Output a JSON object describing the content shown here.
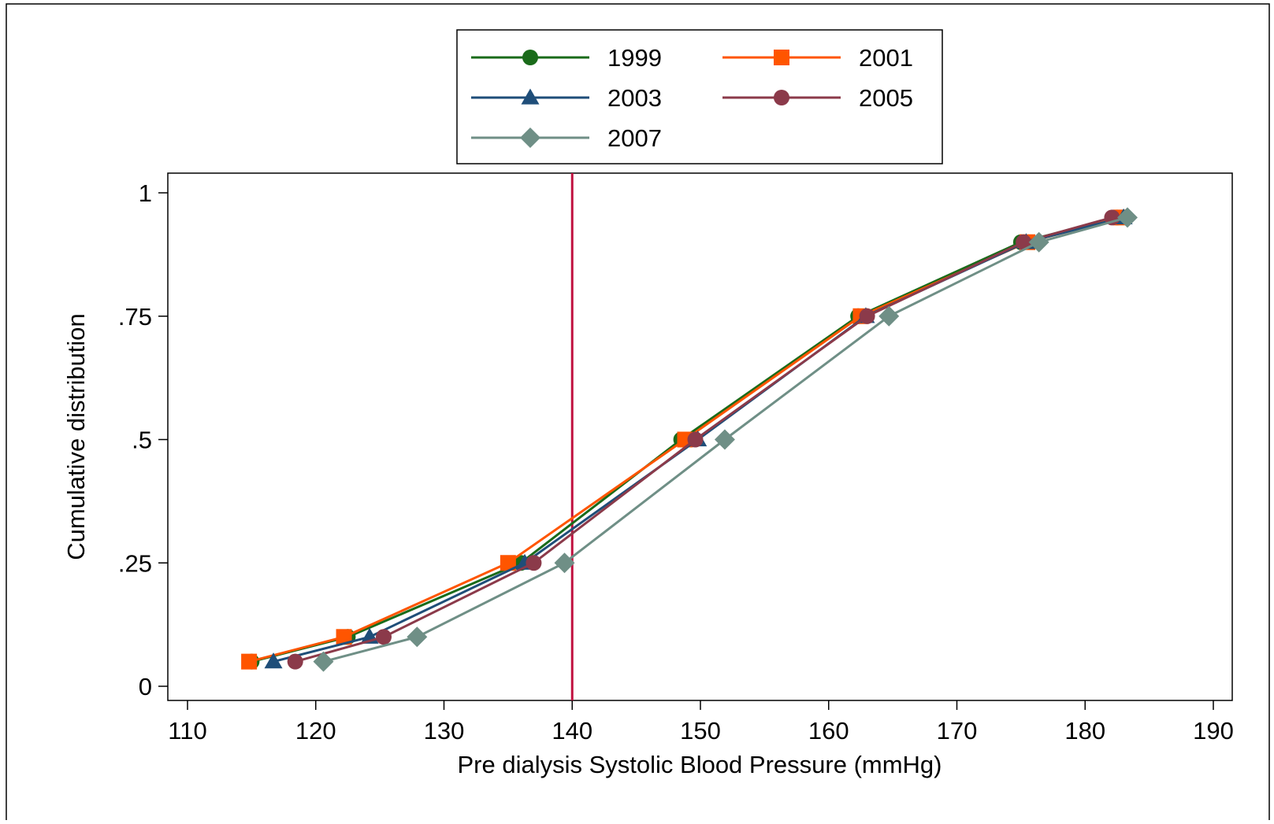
{
  "chart_data": {
    "type": "line",
    "title": "",
    "xlabel": "Pre dialysis Systolic Blood Pressure (mmHg)",
    "ylabel": "Cumulative distribution",
    "xlim": [
      110,
      190
    ],
    "ylim": [
      0,
      1
    ],
    "x_ticks": [
      110,
      120,
      130,
      140,
      150,
      160,
      170,
      180,
      190
    ],
    "y_ticks": [
      {
        "value": 0,
        "label": "0"
      },
      {
        "value": 0.25,
        "label": ".25"
      },
      {
        "value": 0.5,
        "label": ".5"
      },
      {
        "value": 0.75,
        "label": ".75"
      },
      {
        "value": 1,
        "label": "1"
      }
    ],
    "grid": false,
    "legend_position": "top",
    "reference_line": {
      "x": 140,
      "color": "#c0103f"
    },
    "series": [
      {
        "name": "1999",
        "color": "#1a6b1a",
        "marker": "circle",
        "points": [
          {
            "x": 115.0,
            "y": 0.05
          },
          {
            "x": 122.5,
            "y": 0.1
          },
          {
            "x": 136.0,
            "y": 0.25
          },
          {
            "x": 148.5,
            "y": 0.5
          },
          {
            "x": 162.3,
            "y": 0.75
          },
          {
            "x": 175.0,
            "y": 0.9
          },
          {
            "x": 182.5,
            "y": 0.95
          }
        ]
      },
      {
        "name": "2001",
        "color": "#ff5500",
        "marker": "square",
        "points": [
          {
            "x": 114.8,
            "y": 0.05
          },
          {
            "x": 122.2,
            "y": 0.1
          },
          {
            "x": 135.0,
            "y": 0.25
          },
          {
            "x": 148.8,
            "y": 0.5
          },
          {
            "x": 162.5,
            "y": 0.75
          },
          {
            "x": 175.5,
            "y": 0.9
          },
          {
            "x": 182.8,
            "y": 0.95
          }
        ]
      },
      {
        "name": "2003",
        "color": "#1f4e79",
        "marker": "triangle",
        "points": [
          {
            "x": 116.7,
            "y": 0.05
          },
          {
            "x": 124.2,
            "y": 0.1
          },
          {
            "x": 136.3,
            "y": 0.25
          },
          {
            "x": 149.8,
            "y": 0.5
          },
          {
            "x": 162.9,
            "y": 0.75
          },
          {
            "x": 175.4,
            "y": 0.9
          },
          {
            "x": 183.0,
            "y": 0.95
          }
        ]
      },
      {
        "name": "2005",
        "color": "#8b3a4a",
        "marker": "circle",
        "points": [
          {
            "x": 118.4,
            "y": 0.05
          },
          {
            "x": 125.3,
            "y": 0.1
          },
          {
            "x": 137.0,
            "y": 0.25
          },
          {
            "x": 149.6,
            "y": 0.5
          },
          {
            "x": 163.0,
            "y": 0.75
          },
          {
            "x": 175.2,
            "y": 0.9
          },
          {
            "x": 182.1,
            "y": 0.95
          }
        ]
      },
      {
        "name": "2007",
        "color": "#6f8f86",
        "marker": "diamond",
        "points": [
          {
            "x": 120.6,
            "y": 0.05
          },
          {
            "x": 127.9,
            "y": 0.1
          },
          {
            "x": 139.4,
            "y": 0.25
          },
          {
            "x": 151.9,
            "y": 0.5
          },
          {
            "x": 164.7,
            "y": 0.75
          },
          {
            "x": 176.4,
            "y": 0.9
          },
          {
            "x": 183.3,
            "y": 0.95
          }
        ]
      }
    ]
  }
}
